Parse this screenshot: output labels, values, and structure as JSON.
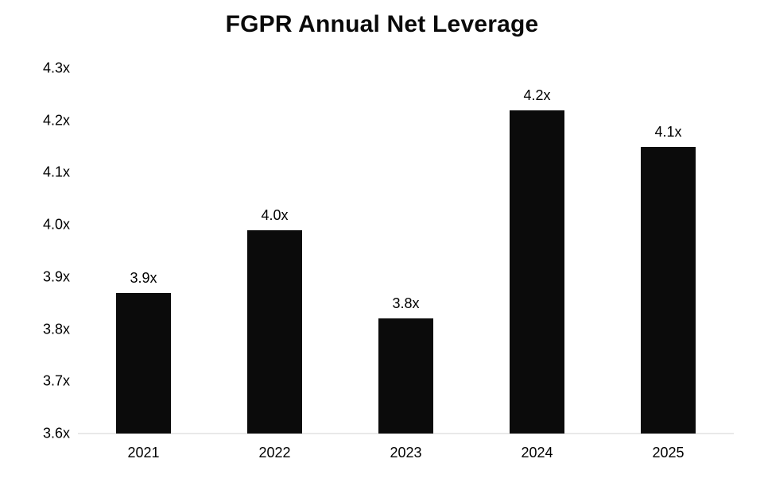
{
  "page": {
    "background_color": "#ffffff",
    "text_color": "#000000"
  },
  "chart_data": {
    "type": "bar",
    "title": "FGPR Annual Net Leverage",
    "categories": [
      "2021",
      "2022",
      "2023",
      "2024",
      "2025"
    ],
    "values": [
      3.87,
      3.99,
      3.82,
      4.22,
      4.15
    ],
    "bar_labels": [
      "3.9x",
      "4.0x",
      "3.8x",
      "4.2x",
      "4.1x"
    ],
    "xlabel": "",
    "ylabel": "",
    "ylim": [
      3.6,
      4.3
    ],
    "yticks": [
      3.6,
      3.7,
      3.8,
      3.9,
      4.0,
      4.1,
      4.2,
      4.3
    ],
    "ytick_labels": [
      "3.6x",
      "3.7x",
      "3.8x",
      "3.9x",
      "4.0x",
      "4.1x",
      "4.2x",
      "4.3x"
    ],
    "grid": false,
    "legend_position": "none",
    "bar_color": "#0b0b0b",
    "axis_line_color": "#e9e9e9"
  }
}
